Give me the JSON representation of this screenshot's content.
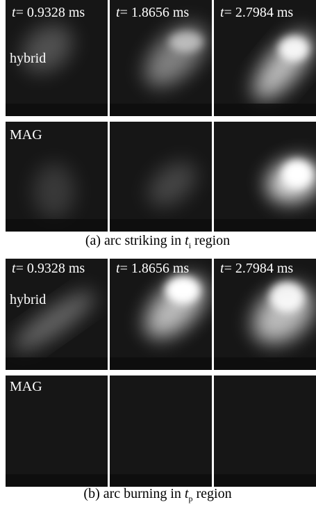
{
  "groups": [
    {
      "time_labels": [
        {
          "var": "t",
          "text": "= 0.9328 ms"
        },
        {
          "var": "t",
          "text": "= 1.8656 ms"
        },
        {
          "var": "t",
          "text": "= 2.7984 ms"
        }
      ],
      "rows": [
        "hybrid",
        "MAG"
      ],
      "caption": {
        "prefix": "(a) arc striking in ",
        "var": "t",
        "sub": "i",
        "suffix": " region"
      }
    },
    {
      "time_labels": [
        {
          "var": "t",
          "text": "= 0.9328 ms"
        },
        {
          "var": "t",
          "text": "= 1.8656 ms"
        },
        {
          "var": "t",
          "text": "= 2.7984 ms"
        }
      ],
      "rows": [
        "hybrid",
        "MAG"
      ],
      "caption": {
        "prefix": "(b) arc burning in ",
        "var": "t",
        "sub": "p",
        "suffix": " region"
      }
    }
  ]
}
